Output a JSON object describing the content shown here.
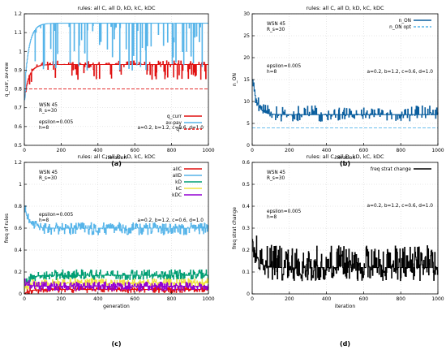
{
  "chart_data": [
    {
      "type": "line",
      "title": "rules: all C, all D, kD, kC, kDC",
      "xlabel": "iteration",
      "ylabel": "q_curr, av-rew",
      "xlim": [
        0,
        1000
      ],
      "ylim": [
        0.5,
        1.2
      ],
      "xticks": [
        0,
        200,
        400,
        600,
        800,
        1000
      ],
      "yticks": [
        0.5,
        0.6,
        0.7,
        0.8,
        0.9,
        1.0,
        1.1,
        1.2
      ],
      "grid": true,
      "legend_position": "bottom-right",
      "annotations": [
        "WSN 45",
        "R_s=30",
        "epsilon=0.005",
        "h=8",
        "a=0.2, b=1.2, c=0.6, d=1.0"
      ],
      "caption": "(a)",
      "series": [
        {
          "name": "q_curr",
          "color": "#e01010",
          "style": "solid",
          "level": 0.93,
          "start": 0.75,
          "noise_up": 0.02,
          "noise_down": 0.08,
          "noise_rate": 0.3
        },
        {
          "name": "av-pay",
          "color": "#56b4e9",
          "style": "solid",
          "level": 1.15,
          "start": 0.8,
          "noise_up": 0.0,
          "noise_down": 0.25,
          "noise_rate": 0.35
        },
        {
          "name": "q*",
          "color": "#e01010",
          "style": "dashed",
          "level": 0.8
        }
      ]
    },
    {
      "type": "line",
      "title": "rules: all C, all D, kD, kC, kDC",
      "xlabel": "iteration",
      "ylabel": "n_ON",
      "xlim": [
        0,
        1000
      ],
      "ylim": [
        0,
        30
      ],
      "xticks": [
        0,
        200,
        400,
        600,
        800,
        1000
      ],
      "yticks": [
        0,
        5,
        10,
        15,
        20,
        25,
        30
      ],
      "grid": true,
      "legend_position": "top-right",
      "annotations": [
        "WSN 45",
        "R_s=30",
        "epsilon=0.005",
        "h=8",
        "a=0.2, b=1.2, c=0.6, d=1.0"
      ],
      "caption": "(b)",
      "series": [
        {
          "name": "n_ON",
          "color": "#0a5e9e",
          "style": "solid",
          "level": 7.0,
          "start": 15,
          "noise_up": 2.0,
          "noise_down": 1.5,
          "noise_rate": 0.4
        },
        {
          "name": "n_ON opt",
          "color": "#56b4e9",
          "style": "dashed",
          "level": 4.0
        }
      ]
    },
    {
      "type": "line",
      "title": "rules: all C, all D, kD, kC, kDC",
      "xlabel": "generation",
      "ylabel": "freq of rules",
      "xlim": [
        0,
        1000
      ],
      "ylim": [
        0,
        1.2
      ],
      "xticks": [
        0,
        200,
        400,
        600,
        800,
        1000
      ],
      "yticks": [
        0,
        0.2,
        0.4,
        0.6,
        0.8,
        1.0,
        1.2
      ],
      "grid": true,
      "legend_position": "top-right",
      "annotations": [
        "WSN 45",
        "R_s=30",
        "epsilon=0.005",
        "h=8",
        "a=0.2, b=1.2, c=0.6, d=1.0"
      ],
      "caption": "(c)",
      "series": [
        {
          "name": "allC",
          "color": "#e01010",
          "style": "solid",
          "level": 0.04,
          "start": 0.0,
          "noise_up": 0.03,
          "noise_down": 0.03,
          "noise_rate": 0.6
        },
        {
          "name": "allD",
          "color": "#56b4e9",
          "style": "solid",
          "level": 0.6,
          "start": 0.8,
          "noise_up": 0.05,
          "noise_down": 0.06,
          "noise_rate": 0.7
        },
        {
          "name": "kD",
          "color": "#009e73",
          "style": "solid",
          "level": 0.17,
          "start": 0.05,
          "noise_up": 0.05,
          "noise_down": 0.04,
          "noise_rate": 0.7
        },
        {
          "name": "kC",
          "color": "#f0e442",
          "style": "solid",
          "level": 0.1,
          "start": 0.05,
          "noise_up": 0.04,
          "noise_down": 0.04,
          "noise_rate": 0.7
        },
        {
          "name": "kDC",
          "color": "#9400d3",
          "style": "solid",
          "level": 0.07,
          "start": 0.1,
          "noise_up": 0.04,
          "noise_down": 0.04,
          "noise_rate": 0.7
        }
      ]
    },
    {
      "type": "line",
      "title": "rules: all C, all D, kD, kC, kDC",
      "xlabel": "iteration",
      "ylabel": "freq strat change",
      "xlim": [
        0,
        1000
      ],
      "ylim": [
        0,
        0.6
      ],
      "xticks": [
        0,
        200,
        400,
        600,
        800,
        1000
      ],
      "yticks": [
        0,
        0.1,
        0.2,
        0.3,
        0.4,
        0.5,
        0.6
      ],
      "grid": true,
      "legend_position": "top-right",
      "annotations": [
        "WSN 45",
        "R_s=30",
        "a=0.2, b=1.2, c=0.6, d=1.0",
        "epsilon=0.005",
        "h=8"
      ],
      "caption": "(d)",
      "series": [
        {
          "name": "freq strat change",
          "color": "#000000",
          "style": "solid",
          "level": 0.12,
          "start": 0.25,
          "noise_up": 0.1,
          "noise_down": 0.06,
          "noise_rate": 0.8
        }
      ]
    }
  ]
}
